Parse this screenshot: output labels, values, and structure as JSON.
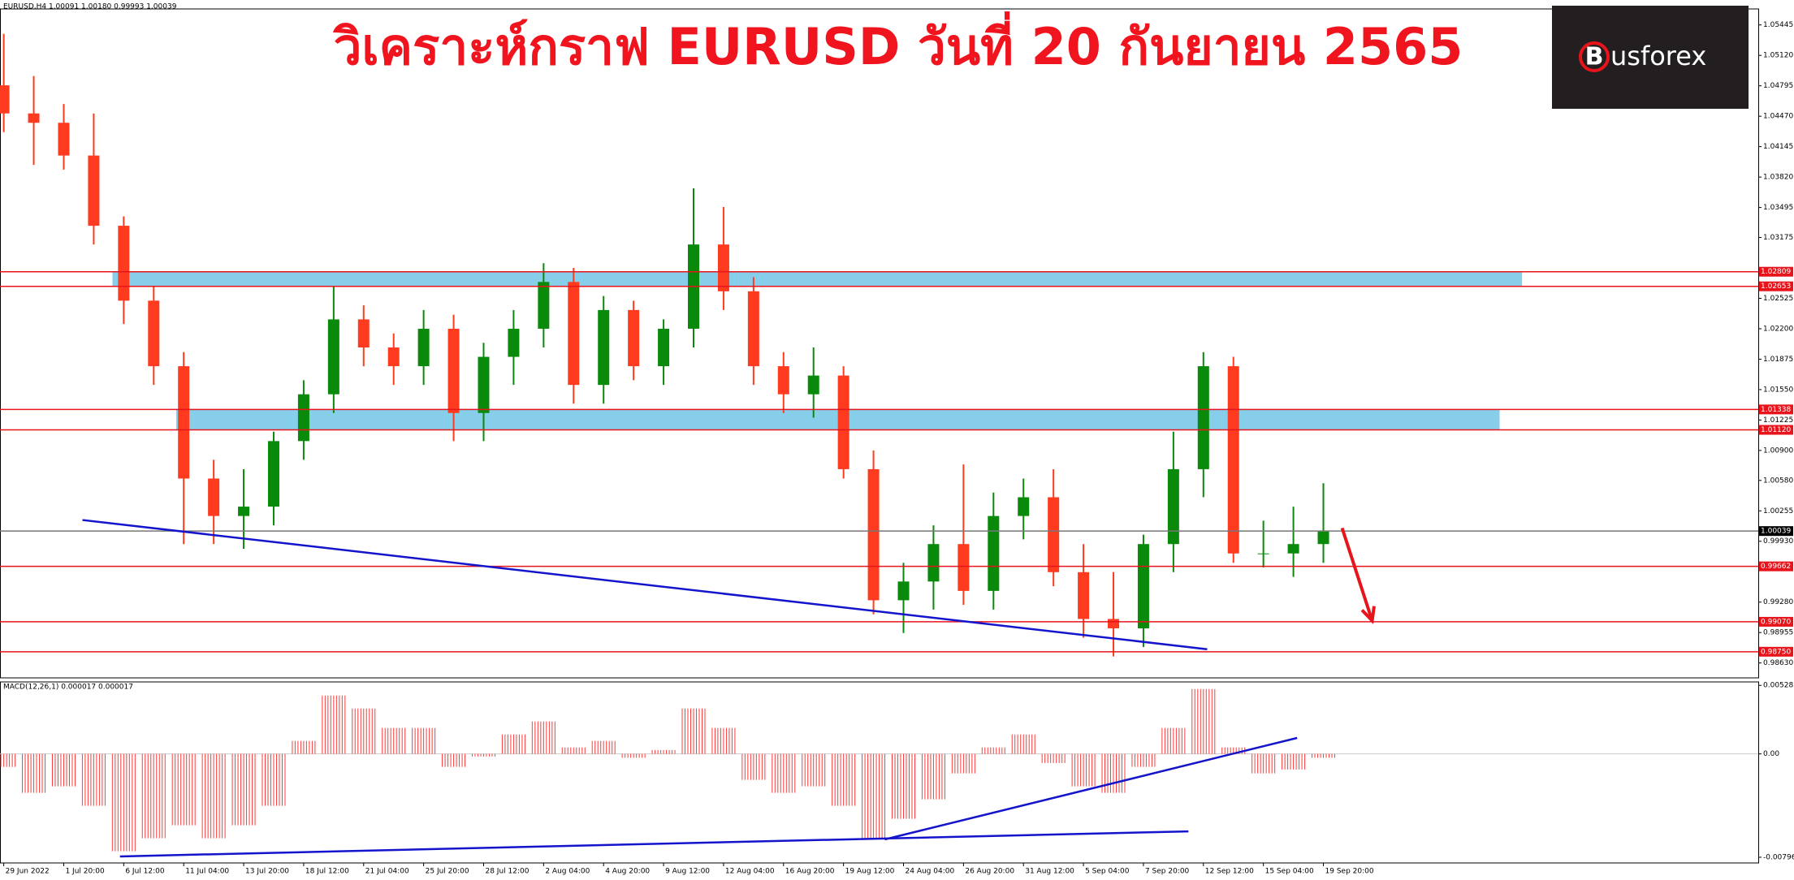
{
  "chart_data": [
    {
      "type": "candlestick",
      "title": "วิเคราะห์กราฟ EURUSD วันที่ 20 กันยายน 2565",
      "header": "EURUSD,H4  1.00091 1.00180 0.99993 1.00039",
      "x": [
        0,
        8,
        16,
        24,
        32,
        40,
        48,
        56,
        64,
        72,
        80,
        88,
        96,
        104,
        112,
        120,
        128,
        136,
        144,
        152,
        160,
        168,
        176,
        184,
        192,
        200,
        208,
        216,
        224,
        232,
        240,
        248,
        256,
        264,
        272,
        280,
        288,
        296,
        304,
        312,
        320,
        328,
        336,
        344,
        352
      ],
      "open": [
        1.048,
        1.045,
        1.044,
        1.0405,
        1.033,
        1.025,
        1.018,
        1.006,
        1.002,
        1.003,
        1.01,
        1.015,
        1.023,
        1.02,
        1.018,
        1.022,
        1.013,
        1.019,
        1.022,
        1.027,
        1.016,
        1.024,
        1.018,
        1.022,
        1.031,
        1.026,
        1.018,
        1.015,
        1.017,
        1.007,
        0.993,
        0.995,
        0.999,
        0.994,
        1.002,
        1.004,
        0.996,
        0.991,
        0.99,
        0.999,
        1.007,
        1.018,
        0.998,
        0.998,
        0.999
      ],
      "high": [
        1.0535,
        1.049,
        1.046,
        1.045,
        1.034,
        1.0265,
        1.0195,
        1.008,
        1.007,
        1.011,
        1.0165,
        1.0265,
        1.0245,
        1.0215,
        1.024,
        1.0235,
        1.0205,
        1.024,
        1.029,
        1.0285,
        1.0255,
        1.025,
        1.023,
        1.037,
        1.035,
        1.0275,
        1.0195,
        1.02,
        1.018,
        1.009,
        0.997,
        1.001,
        1.0075,
        1.0045,
        1.006,
        1.007,
        0.999,
        0.996,
        1.0,
        1.011,
        1.0195,
        1.019,
        1.0015,
        1.003,
        1.0055
      ],
      "low": [
        1.043,
        1.0395,
        1.039,
        1.031,
        1.0225,
        1.016,
        0.999,
        0.999,
        0.9985,
        1.001,
        1.008,
        1.013,
        1.018,
        1.016,
        1.016,
        1.01,
        1.01,
        1.016,
        1.02,
        1.014,
        1.014,
        1.0165,
        1.016,
        1.02,
        1.024,
        1.016,
        1.013,
        1.0125,
        1.006,
        0.9915,
        0.9895,
        0.992,
        0.9925,
        0.992,
        0.9995,
        0.9945,
        0.989,
        0.987,
        0.988,
        0.996,
        1.004,
        0.997,
        0.9965,
        0.9955,
        0.997
      ],
      "close": [
        1.045,
        1.044,
        1.0405,
        1.033,
        1.025,
        1.018,
        1.006,
        1.002,
        1.003,
        1.01,
        1.015,
        1.023,
        1.02,
        1.018,
        1.022,
        1.013,
        1.019,
        1.022,
        1.027,
        1.016,
        1.024,
        1.018,
        1.022,
        1.031,
        1.026,
        1.018,
        1.015,
        1.017,
        1.007,
        0.993,
        0.995,
        0.999,
        0.994,
        1.002,
        1.004,
        0.996,
        0.991,
        0.99,
        0.999,
        1.007,
        1.018,
        0.998,
        0.998,
        0.999,
        1.0004
      ],
      "up_color": "#0a8a0a",
      "down_color": "#ff3b1f",
      "xlim": [
        -1,
        468
      ],
      "xticks": [
        {
          "value": 0,
          "label": "29 Jun 2022"
        },
        {
          "value": 16,
          "label": "1 Jul 20:00"
        },
        {
          "value": 32,
          "label": "6 Jul 12:00"
        },
        {
          "value": 48,
          "label": "11 Jul 04:00"
        },
        {
          "value": 64,
          "label": "13 Jul 20:00"
        },
        {
          "value": 80,
          "label": "18 Jul 12:00"
        },
        {
          "value": 96,
          "label": "21 Jul 04:00"
        },
        {
          "value": 112,
          "label": "25 Jul 20:00"
        },
        {
          "value": 128,
          "label": "28 Jul 12:00"
        },
        {
          "value": 144,
          "label": "2 Aug 04:00"
        },
        {
          "value": 160,
          "label": "4 Aug 20:00"
        },
        {
          "value": 176,
          "label": "9 Aug 12:00"
        },
        {
          "value": 192,
          "label": "12 Aug 04:00"
        },
        {
          "value": 208,
          "label": "16 Aug 20:00"
        },
        {
          "value": 224,
          "label": "19 Aug 12:00"
        },
        {
          "value": 240,
          "label": "24 Aug 04:00"
        },
        {
          "value": 256,
          "label": "26 Aug 20:00"
        },
        {
          "value": 272,
          "label": "31 Aug 12:00"
        },
        {
          "value": 288,
          "label": "5 Sep 04:00"
        },
        {
          "value": 304,
          "label": "7 Sep 20:00"
        },
        {
          "value": 320,
          "label": "12 Sep 12:00"
        },
        {
          "value": 336,
          "label": "15 Sep 04:00"
        },
        {
          "value": 352,
          "label": "19 Sep 20:00"
        }
      ],
      "ylim": [
        0.98471,
        1.05616
      ],
      "yticks": [
        1.05445,
        {
          "value": 1.0512,
          "label": "1.05120"
        },
        1.04795,
        {
          "value": 1.0447,
          "label": "1.04470"
        },
        1.04145,
        {
          "value": 1.0382,
          "label": "1.03820"
        },
        1.03495,
        1.03175,
        1.02525,
        {
          "value": 1.022,
          "label": "1.02200"
        },
        1.01875,
        {
          "value": 1.0155,
          "label": "1.01550"
        },
        1.01225,
        {
          "value": 1.009,
          "label": "1.00900"
        },
        {
          "value": 1.0058,
          "label": "1.00580"
        },
        1.00255,
        {
          "value": 0.9993,
          "label": "0.99930"
        },
        {
          "value": 0.9928,
          "label": "0.99280"
        },
        0.98955,
        {
          "value": 0.9863,
          "label": "0.98630"
        }
      ],
      "levels": [
        1.02809,
        1.02653,
        1.01338,
        {
          "value": 1.0112,
          "label": "1.01120"
        },
        0.99662,
        {
          "value": 0.9907,
          "label": "0.99070"
        },
        {
          "value": 0.9875,
          "label": "0.98750"
        }
      ],
      "level_color": "#e8141b",
      "current_price": 1.00039,
      "zones": [
        {
          "y": [
            1.02653,
            1.02809
          ],
          "x": [
            29,
            405
          ]
        },
        {
          "y": [
            1.0112,
            1.01338
          ],
          "x": [
            46,
            399
          ]
        }
      ],
      "zone_color": "#87ceeb",
      "trendlines": [
        {
          "x": [
            21,
            321
          ],
          "y": [
            1.00157,
            0.98777
          ]
        }
      ],
      "trend_color": "#1414cc",
      "arrow": {
        "x": [
          357,
          365
        ],
        "y": [
          1.00071,
          0.99082
        ]
      },
      "arrow_color": "#e8141b"
    },
    {
      "type": "macd",
      "label": "MACD(12,26,1) 0.000017 0.000017",
      "x": [
        0,
        8,
        16,
        24,
        32,
        40,
        48,
        56,
        64,
        72,
        80,
        88,
        96,
        104,
        112,
        120,
        128,
        136,
        144,
        152,
        160,
        168,
        176,
        184,
        192,
        200,
        208,
        216,
        224,
        232,
        240,
        248,
        256,
        264,
        272,
        280,
        288,
        296,
        304,
        312,
        320,
        328,
        336,
        344,
        352
      ],
      "values": [
        -0.001,
        -0.003,
        -0.0025,
        -0.004,
        -0.0075,
        -0.0065,
        -0.0055,
        -0.0065,
        -0.0055,
        -0.004,
        0.001,
        0.0045,
        0.0035,
        0.002,
        0.002,
        -0.001,
        -0.0002,
        0.0015,
        0.0025,
        0.0005,
        0.001,
        -0.0003,
        0.0003,
        0.0035,
        0.002,
        -0.002,
        -0.003,
        -0.0025,
        -0.004,
        -0.0065,
        -0.005,
        -0.0035,
        -0.0015,
        0.0005,
        0.0015,
        -0.0007,
        -0.0025,
        -0.003,
        -0.001,
        0.002,
        0.005,
        0.0005,
        -0.0015,
        -0.0012,
        -0.0003
      ],
      "color": "#ff3b3b",
      "xlim": [
        -1,
        468
      ],
      "ylim": [
        -0.008404,
        0.005546
      ],
      "yticks": [
        0.005282,
        {
          "value": 0,
          "label": "0.00"
        },
        -0.007964
      ],
      "trendlines": [
        {
          "x": [
            31,
            316
          ],
          "y": [
            -0.0079,
            -0.00597
          ]
        },
        {
          "x": [
            235,
            345
          ],
          "y": [
            -0.00659,
            0.00123
          ]
        }
      ],
      "trend_color": "#1414cc"
    }
  ],
  "logo": {
    "mark": "B",
    "text": "usforex"
  }
}
